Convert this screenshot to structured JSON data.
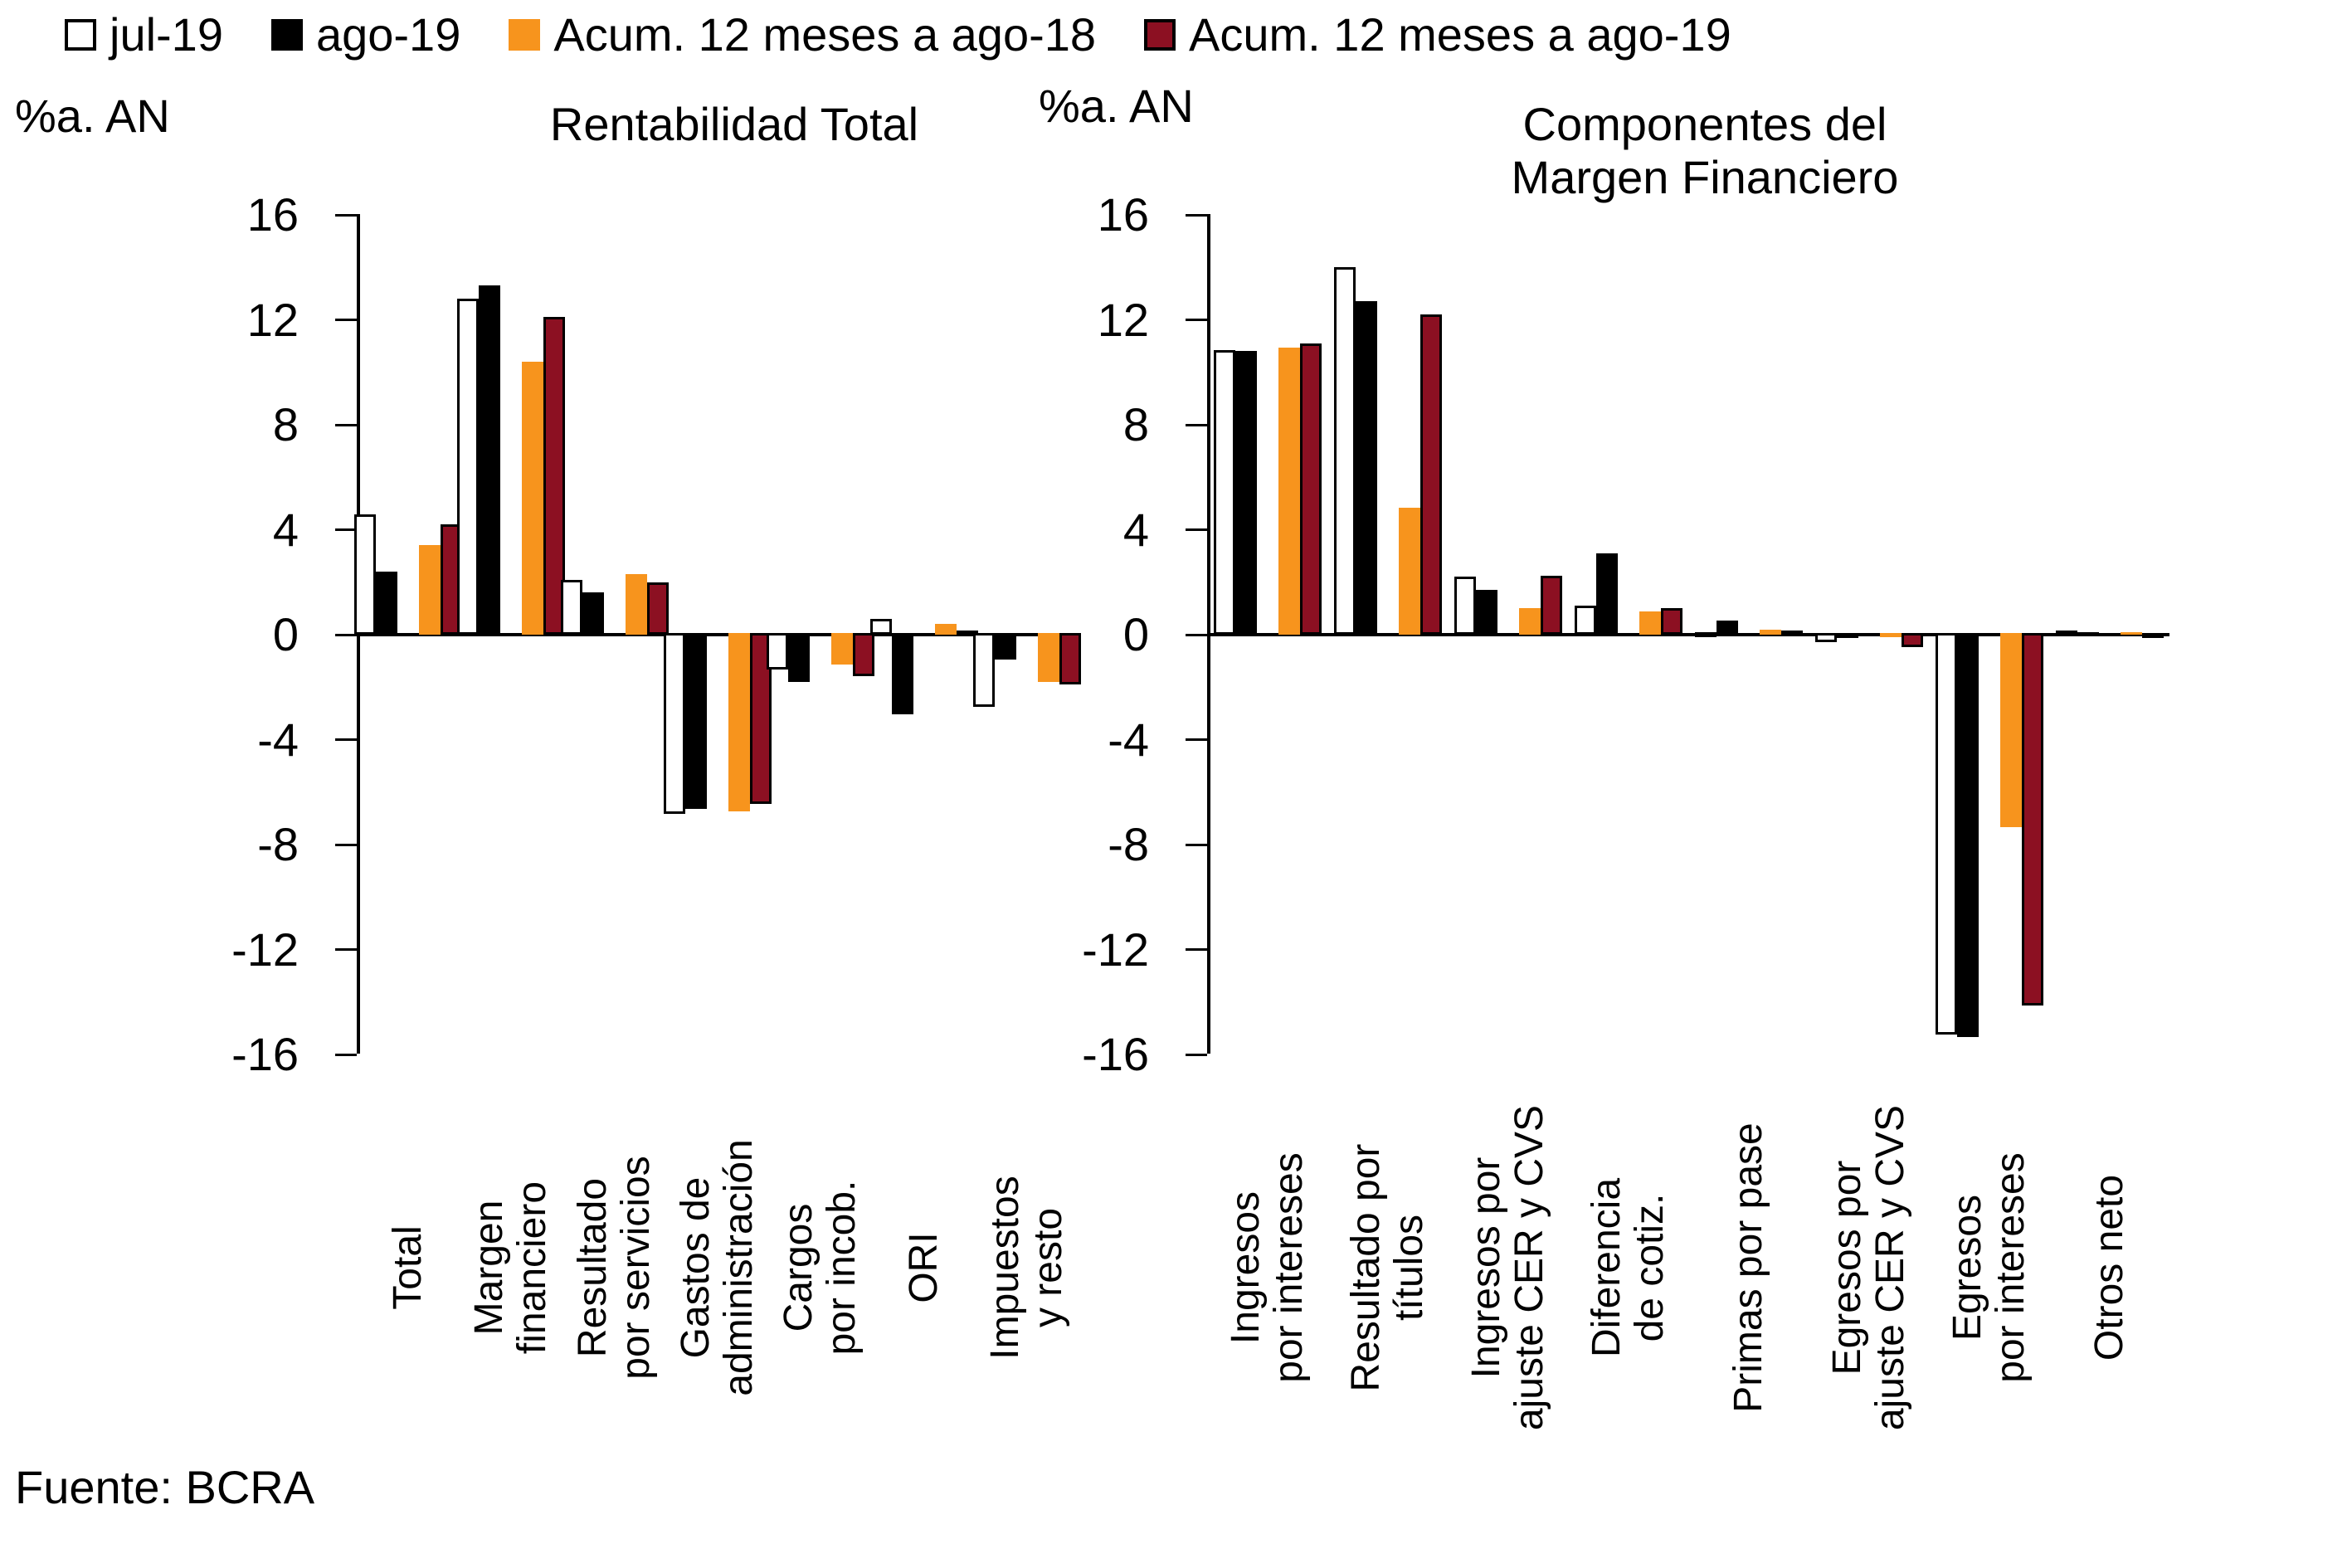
{
  "legend": {
    "items": [
      {
        "label": "jul-19",
        "color": "#ffffff",
        "border": true
      },
      {
        "label": "ago-19",
        "color": "#000000",
        "border": false
      },
      {
        "label": "Acum. 12 meses a ago-18",
        "color": "#f7941d",
        "border": false
      },
      {
        "label": "Acum. 12 meses a ago-19",
        "color": "#8c1022",
        "border": true
      }
    ]
  },
  "colors": {
    "white": "#ffffff",
    "black": "#000000",
    "orange": "#f7941d",
    "dark_red": "#8c1022",
    "axis": "#000000"
  },
  "axis_unit_label": "%a. AN",
  "source_label": "Fuente: BCRA",
  "chart_data": [
    {
      "type": "bar",
      "title": "Rentabilidad Total",
      "ylabel": "%a. AN",
      "ylim": [
        -16,
        16
      ],
      "yticks": [
        16,
        12,
        8,
        4,
        0,
        -4,
        -8,
        -12,
        -16
      ],
      "grid": false,
      "legend_position": "top",
      "categories": [
        "Total",
        "Margen\nfinanciero",
        "Resultado\npor servicios",
        "Gastos de\nadministración",
        "Cargos\npor incob.",
        "ORI",
        "Impuestos\ny resto"
      ],
      "series": [
        {
          "name": "jul-19",
          "values": [
            4.6,
            12.8,
            2.1,
            -6.9,
            -1.4,
            0.6,
            -2.8
          ]
        },
        {
          "name": "ago-19",
          "values": [
            2.4,
            13.3,
            1.6,
            -6.7,
            -1.85,
            -3.1,
            -1.0
          ]
        },
        {
          "name": "Acum. 12 meses a ago-18",
          "values": [
            3.4,
            10.4,
            2.3,
            -6.8,
            -1.2,
            0.4,
            -1.85
          ]
        },
        {
          "name": "Acum. 12 meses a ago-19",
          "values": [
            4.2,
            12.1,
            2.0,
            -6.5,
            -1.65,
            0.15,
            -1.95
          ]
        }
      ]
    },
    {
      "type": "bar",
      "title": "Componentes del\nMargen Financiero",
      "ylabel": "%a. AN",
      "ylim": [
        -16,
        16
      ],
      "yticks": [
        16,
        12,
        8,
        4,
        0,
        -4,
        -8,
        -12,
        -16
      ],
      "grid": false,
      "legend_position": "top",
      "categories": [
        "Ingresos\npor intereses",
        "Resultado por\ntítulos",
        "Ingresos por\najuste CER y CVS",
        "Diferencia\nde cotiz.",
        "Primas por pase",
        "Egresos por\najuste CER y CVS",
        "Egresos\npor intereses",
        "Otros neto"
      ],
      "series": [
        {
          "name": "jul-19",
          "values": [
            10.85,
            14.0,
            2.2,
            1.1,
            0.1,
            -0.35,
            -15.3,
            0.15
          ]
        },
        {
          "name": "ago-19",
          "values": [
            10.8,
            12.7,
            1.7,
            3.1,
            0.55,
            -0.2,
            -15.4,
            0.05
          ]
        },
        {
          "name": "Acum. 12 meses a ago-18",
          "values": [
            10.95,
            4.85,
            1.0,
            0.9,
            0.2,
            -0.15,
            -7.4,
            0.05
          ]
        },
        {
          "name": "Acum. 12 meses a ago-19",
          "values": [
            11.1,
            12.2,
            2.25,
            1.0,
            0.15,
            -0.55,
            -14.2,
            -0.15
          ]
        }
      ]
    }
  ],
  "layout_note_values_visible_only": true
}
